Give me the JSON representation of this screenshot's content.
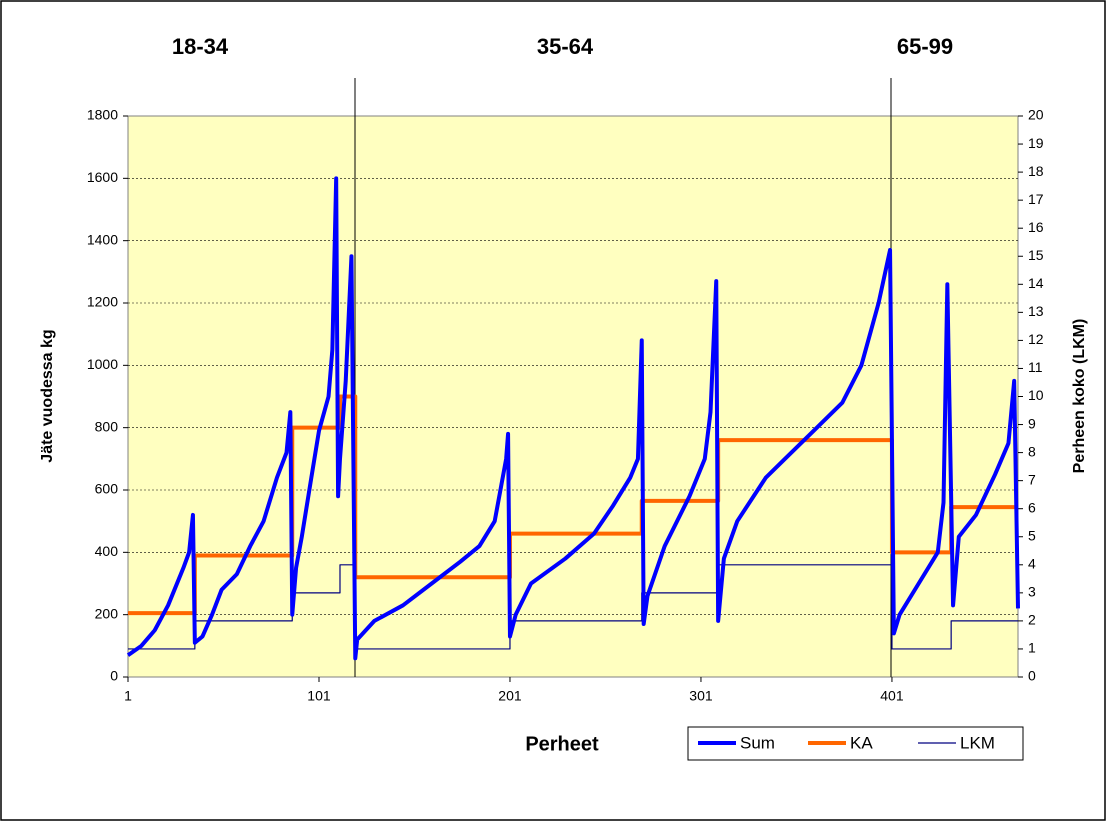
{
  "chart_data": {
    "type": "line",
    "annotations": [
      "18-34",
      "35-64",
      "65-99"
    ],
    "xlabel": "Perheet",
    "ylabel": "Jäte vuodessa kg",
    "y2label": "Perheen koko (LKM)",
    "xlim": [
      1,
      467
    ],
    "xticks": [
      1,
      101,
      201,
      301,
      401
    ],
    "ylim": [
      0,
      1800
    ],
    "yticks": [
      0,
      200,
      400,
      600,
      800,
      1000,
      1200,
      1400,
      1600,
      1800
    ],
    "y2lim": [
      0,
      20
    ],
    "y2ticks": [
      0,
      1,
      2,
      3,
      4,
      5,
      6,
      7,
      8,
      9,
      10,
      11,
      12,
      13,
      14,
      15,
      16,
      17,
      18,
      19,
      20
    ],
    "grid": true,
    "legend": "bottom",
    "series": [
      {
        "name": "Sum",
        "color": "#0000ff",
        "axis": "y",
        "x": [
          1,
          8,
          15,
          22,
          30,
          33,
          35,
          36,
          40,
          45,
          50,
          58,
          65,
          72,
          79,
          84,
          86,
          87,
          89,
          92,
          97,
          101,
          106,
          108,
          110,
          111,
          112,
          115,
          118,
          120,
          121,
          130,
          145,
          160,
          175,
          185,
          193,
          199,
          200,
          201,
          204,
          212,
          230,
          245,
          255,
          264,
          268,
          270,
          271,
          273,
          282,
          295,
          303,
          306,
          309,
          310,
          313,
          320,
          335,
          345,
          360,
          375,
          385,
          394,
          400,
          402,
          405,
          415,
          425,
          428,
          430,
          433,
          436,
          445,
          455,
          462,
          465,
          467
        ],
        "values": [
          70,
          100,
          150,
          230,
          350,
          400,
          520,
          110,
          130,
          200,
          280,
          330,
          420,
          500,
          640,
          720,
          850,
          200,
          350,
          450,
          640,
          790,
          900,
          1050,
          1600,
          580,
          700,
          950,
          1350,
          60,
          120,
          180,
          230,
          300,
          370,
          420,
          500,
          700,
          780,
          130,
          200,
          300,
          380,
          460,
          550,
          640,
          700,
          1080,
          170,
          260,
          420,
          580,
          700,
          850,
          1270,
          180,
          380,
          500,
          640,
          700,
          790,
          880,
          1000,
          1200,
          1370,
          140,
          200,
          300,
          400,
          560,
          1260,
          230,
          450,
          520,
          650,
          750,
          950,
          220
        ]
      },
      {
        "name": "KA",
        "color": "#ff6600",
        "axis": "y",
        "x": [
          1,
          36,
          36,
          87,
          87,
          112,
          112,
          120,
          120,
          201,
          201,
          270,
          270,
          310,
          310,
          401,
          401,
          432,
          432,
          467
        ],
        "values": [
          205,
          205,
          390,
          390,
          800,
          800,
          900,
          900,
          320,
          320,
          460,
          460,
          565,
          565,
          760,
          760,
          400,
          400,
          545,
          545
        ]
      },
      {
        "name": "LKM",
        "color": "#000080",
        "axis": "y2",
        "x": [
          1,
          36,
          36,
          87,
          87,
          112,
          112,
          120,
          120,
          201,
          201,
          270,
          270,
          310,
          310,
          401,
          401,
          432,
          432,
          467
        ],
        "values": [
          1,
          1,
          2,
          2,
          3,
          3,
          4,
          4,
          1,
          1,
          2,
          2,
          3,
          3,
          4,
          4,
          1,
          1,
          2,
          2
        ]
      }
    ]
  }
}
